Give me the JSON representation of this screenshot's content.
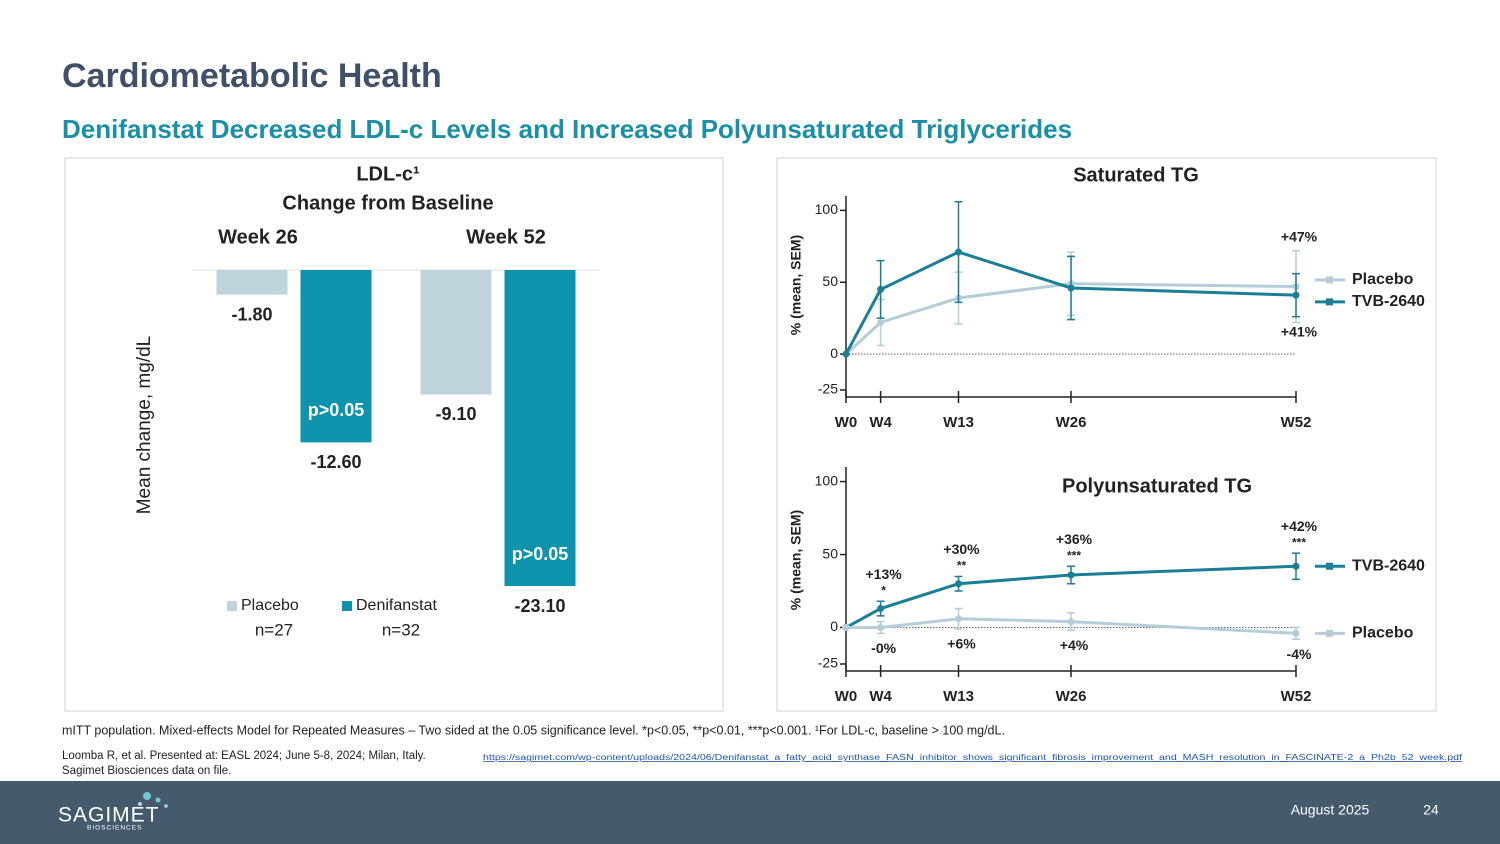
{
  "header": {
    "title": "Cardiometabolic Health",
    "subtitle": "Denifanstat Decreased LDL-c Levels and Increased Polyunsaturated Triglycerides"
  },
  "chart_data": [
    {
      "type": "bar",
      "title": "LDL-c¹",
      "subtitle": "Change from Baseline",
      "y_label": "Mean change, mg/dL",
      "categories": [
        "Week 26",
        "Week 52"
      ],
      "series": [
        {
          "name": "Placebo",
          "sample": "n=27",
          "color": "#bfd3dd",
          "values": [
            -1.8,
            -9.1
          ],
          "value_labels": [
            "-1.80",
            "-9.10"
          ]
        },
        {
          "name": "Denifanstat",
          "sample": "n=32",
          "color": "#0e93ad",
          "values": [
            -12.6,
            -23.1
          ],
          "value_labels": [
            "-12.60",
            "-23.10"
          ],
          "annotations": [
            "p>0.05",
            "p>0.05"
          ]
        }
      ],
      "ylim": [
        -25,
        0
      ]
    },
    {
      "type": "line",
      "title": "Saturated TG",
      "y_label": "% (mean, SEM)",
      "x": [
        0,
        4,
        13,
        26,
        52
      ],
      "xlim": [
        0,
        52
      ],
      "xticks": [
        {
          "value": 0,
          "label": "W0"
        },
        {
          "value": 4,
          "label": "W4"
        },
        {
          "value": 13,
          "label": "W13"
        },
        {
          "value": 26,
          "label": "W26"
        },
        {
          "value": 52,
          "label": "W52"
        }
      ],
      "ylim": [
        -25,
        110
      ],
      "yticks": [
        -25,
        0,
        50,
        100
      ],
      "series": [
        {
          "name": "Placebo",
          "color": "#b5cdd8",
          "values": [
            0,
            22,
            39,
            49,
            47
          ],
          "errors": [
            0,
            16,
            18,
            22,
            25
          ],
          "value_labels": [
            null,
            null,
            null,
            null,
            "+47%"
          ]
        },
        {
          "name": "TVB-2640",
          "color": "#1a7f96",
          "values": [
            0,
            45,
            71,
            46,
            41
          ],
          "errors": [
            0,
            20,
            35,
            22,
            15
          ],
          "value_labels": [
            null,
            null,
            null,
            null,
            "+41%"
          ]
        }
      ]
    },
    {
      "type": "line",
      "title": "Polyunsaturated TG",
      "y_label": "% (mean, SEM)",
      "x": [
        0,
        4,
        13,
        26,
        52
      ],
      "xlim": [
        0,
        52
      ],
      "xticks": [
        {
          "value": 0,
          "label": "W0"
        },
        {
          "value": 4,
          "label": "W4"
        },
        {
          "value": 13,
          "label": "W13"
        },
        {
          "value": 26,
          "label": "W26"
        },
        {
          "value": 52,
          "label": "W52"
        }
      ],
      "ylim": [
        -25,
        110
      ],
      "yticks": [
        -25,
        0,
        50,
        100
      ],
      "series": [
        {
          "name": "TVB-2640",
          "color": "#1a7f96",
          "values": [
            0,
            13,
            30,
            36,
            42
          ],
          "errors": [
            0,
            5,
            5,
            6,
            9
          ],
          "value_labels": [
            null,
            "+13%",
            "+30%",
            "+36%",
            "+42%"
          ],
          "significance": [
            null,
            "*",
            "**",
            "***",
            "***"
          ]
        },
        {
          "name": "Placebo",
          "color": "#b5cdd8",
          "values": [
            0,
            0,
            6,
            4,
            -4
          ],
          "errors": [
            0,
            4,
            7,
            6,
            4
          ],
          "value_labels": [
            null,
            "-0%",
            "+6%",
            "+4%",
            "-4%"
          ]
        }
      ]
    }
  ],
  "footer": {
    "footnote": "mITT population. Mixed-effects Model for Repeated Measures – Two sided at the 0.05 significance level. *p<0.05, **p<0.01, ***p<0.001. ¹For LDL-c, baseline > 100 mg/dL.",
    "reference": "Loomba R, et al. Presented at: EASL 2024; June 5-8, 2024; Milan, Italy.",
    "url": "https://sagimet.com/wp-content/uploads/2024/06/Denifanstat_a_fatty_acid_synthase_FASN_inhibitor_shows_significant_fibrosis_improvement_and_MASH_resolution_in_FASCINATE-2_a_Ph2b_52_week.pdf",
    "data_note": "Sagimet Biosciences data on file.",
    "logo": "SAGIMET",
    "logo_sub": "BIOSCIENCES",
    "date": "August 2025",
    "page": "24"
  }
}
